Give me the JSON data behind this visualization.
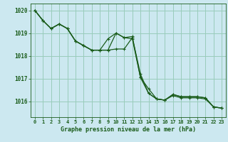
{
  "title": "Graphe pression niveau de la mer (hPa)",
  "background_color": "#cce8f0",
  "grid_color": "#99ccbb",
  "line_color": "#1a5c1a",
  "xlim": [
    -0.5,
    23.5
  ],
  "ylim": [
    1015.3,
    1020.3
  ],
  "yticks": [
    1016,
    1017,
    1018,
    1019,
    1020
  ],
  "xticks": [
    0,
    1,
    2,
    3,
    4,
    5,
    6,
    7,
    8,
    9,
    10,
    11,
    12,
    13,
    14,
    15,
    16,
    17,
    18,
    19,
    20,
    21,
    22,
    23
  ],
  "line1": [
    1020.0,
    1019.55,
    1019.2,
    1019.4,
    1019.2,
    1018.65,
    1018.45,
    1018.25,
    1018.25,
    1018.25,
    1019.0,
    1018.8,
    1018.75,
    1017.05,
    1016.35,
    1016.1,
    1016.05,
    1016.25,
    1016.15,
    1016.15,
    1016.15,
    1016.1,
    1015.75,
    1015.7
  ],
  "line2": [
    1020.0,
    1019.55,
    1019.2,
    1019.4,
    1019.2,
    1018.65,
    1018.45,
    1018.25,
    1018.25,
    1018.75,
    1019.0,
    1018.8,
    1018.85,
    1017.05,
    1016.55,
    1016.1,
    1016.05,
    1016.3,
    1016.2,
    1016.2,
    1016.2,
    1016.15,
    1015.75,
    1015.7
  ],
  "line3": [
    1020.0,
    1019.55,
    1019.2,
    1019.4,
    1019.2,
    1018.65,
    1018.45,
    1018.25,
    1018.25,
    1018.25,
    1018.3,
    1018.3,
    1018.8,
    1017.2,
    1016.35,
    1016.1,
    1016.05,
    1016.3,
    1016.2,
    1016.2,
    1016.2,
    1016.15,
    1015.75,
    1015.7
  ],
  "title_fontsize": 6.0,
  "tick_fontsize": 5.0
}
